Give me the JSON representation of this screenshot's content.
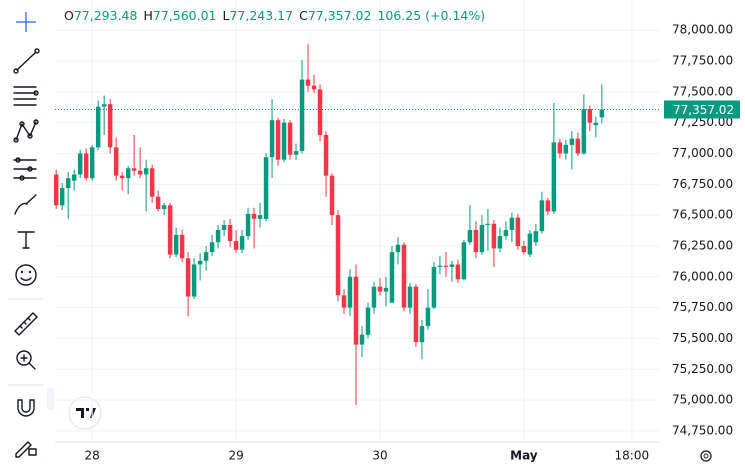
{
  "chart_data": {
    "type": "candlestick",
    "header": {
      "items": [
        {
          "label": "O",
          "value": "77,293.48"
        },
        {
          "label": "H",
          "value": "77,560.01"
        },
        {
          "label": "L",
          "value": "77,243.17"
        },
        {
          "label": "C",
          "value": "77,357.02"
        }
      ],
      "change": "106.25 (+0.14%)"
    },
    "x": [
      -6,
      -5,
      -4,
      -3,
      -2,
      -1,
      0,
      1,
      2,
      3,
      4,
      5,
      6,
      7,
      8,
      9,
      10,
      11,
      12,
      13,
      14,
      15,
      16,
      17,
      18,
      19,
      20,
      21,
      22,
      23,
      24,
      25,
      26,
      27,
      28,
      29,
      30,
      31,
      32,
      33,
      34,
      35,
      36,
      37,
      38,
      39,
      40,
      41,
      42,
      43,
      44,
      45,
      46,
      47,
      48,
      49,
      50,
      51,
      52,
      53,
      54,
      55,
      56,
      57,
      58,
      59,
      60,
      61,
      62,
      63,
      64,
      65,
      66,
      67,
      68,
      69,
      70,
      71,
      72,
      73,
      74,
      75,
      76,
      77,
      78,
      79,
      80,
      81,
      82,
      83,
      84,
      85
    ],
    "open": [
      76830,
      76580,
      76720,
      76780,
      76830,
      77000,
      76800,
      77050,
      77380,
      77400,
      77050,
      76820,
      76800,
      76880,
      76860,
      76830,
      76880,
      76650,
      76550,
      76580,
      76180,
      76340,
      76150,
      75840,
      76100,
      76130,
      76200,
      76280,
      76380,
      76420,
      76290,
      76220,
      76330,
      76510,
      76470,
      76470,
      76970,
      77270,
      76950,
      77250,
      76990,
      77020,
      77600,
      77550,
      77520,
      77150,
      76820,
      76500,
      75850,
      75750,
      76000,
      75450,
      75530,
      75750,
      75920,
      75880,
      75790,
      76200,
      76260,
      75750,
      75920,
      75470,
      75600,
      75750,
      76080,
      76090,
      76080,
      76100,
      75980,
      76280,
      76380,
      76200,
      76420,
      76430,
      76230,
      76330,
      76380,
      76480,
      76250,
      76180,
      76280,
      76370,
      76620,
      76530,
      77090,
      77000,
      77070,
      77120,
      77000,
      77360,
      77230,
      77293.48
    ],
    "close": [
      76580,
      76720,
      76800,
      76830,
      77000,
      76800,
      77050,
      77380,
      77400,
      77050,
      76820,
      76800,
      76880,
      76860,
      76830,
      76880,
      76650,
      76550,
      76580,
      76180,
      76340,
      76150,
      75840,
      76100,
      76130,
      76200,
      76280,
      76380,
      76420,
      76290,
      76220,
      76330,
      76510,
      76470,
      76500,
      76970,
      77270,
      76950,
      77250,
      76990,
      77020,
      77600,
      77550,
      77520,
      77150,
      76820,
      76500,
      75850,
      75750,
      76000,
      75450,
      75530,
      75750,
      75920,
      75880,
      75910,
      76200,
      76260,
      75750,
      75920,
      75470,
      75600,
      75750,
      76080,
      76090,
      76080,
      76100,
      75980,
      76280,
      76380,
      76200,
      76420,
      76430,
      76230,
      76330,
      76380,
      76480,
      76250,
      76200,
      76350,
      76370,
      76620,
      76530,
      77090,
      77000,
      77070,
      77120,
      77000,
      77360,
      77250,
      77250,
      77357.02
    ],
    "high": [
      76870,
      76760,
      76850,
      76870,
      77030,
      77040,
      77070,
      77430,
      77470,
      77440,
      77130,
      76850,
      76900,
      77150,
      77050,
      76950,
      76910,
      76700,
      76600,
      76600,
      76400,
      76380,
      76200,
      76150,
      76190,
      76250,
      76340,
      76420,
      76460,
      76470,
      76380,
      76380,
      76560,
      76560,
      76600,
      77000,
      77440,
      77290,
      77280,
      77270,
      77080,
      77760,
      77890,
      77640,
      77560,
      77180,
      76840,
      76540,
      75900,
      76060,
      76100,
      75600,
      75790,
      75960,
      75990,
      76000,
      76250,
      76320,
      76280,
      75950,
      75940,
      75650,
      75900,
      76120,
      76170,
      76200,
      76130,
      76140,
      76300,
      76580,
      76450,
      76500,
      76550,
      76460,
      76400,
      76450,
      76520,
      76510,
      76290,
      76380,
      76430,
      76690,
      76640,
      77410,
      77120,
      77110,
      77180,
      77170,
      77480,
      77390,
      77300,
      77560.01
    ],
    "low": [
      76550,
      76540,
      76470,
      76700,
      76800,
      76780,
      76780,
      77030,
      77150,
      77000,
      76780,
      76700,
      76670,
      76820,
      76800,
      76530,
      76600,
      76530,
      76500,
      76150,
      76160,
      76120,
      75680,
      75820,
      75970,
      76050,
      76170,
      76230,
      76330,
      76240,
      76190,
      76190,
      76300,
      76230,
      76400,
      76450,
      76800,
      76900,
      76930,
      76950,
      76950,
      77000,
      77500,
      77490,
      77100,
      76650,
      76420,
      75800,
      75700,
      75680,
      74960,
      75350,
      75500,
      75700,
      75850,
      75760,
      75790,
      76100,
      75720,
      75700,
      75430,
      75330,
      75570,
      75740,
      76020,
      76000,
      75960,
      75950,
      75970,
      76260,
      76150,
      76180,
      76210,
      76080,
      76200,
      76300,
      76280,
      76220,
      76180,
      76160,
      76250,
      76350,
      76500,
      76510,
      76960,
      76950,
      76870,
      76980,
      76990,
      77180,
      77130,
      77243.17
    ],
    "colors": {
      "up": "#089981",
      "down": "#f23645"
    },
    "xlim": [
      -6.2,
      94.7
    ],
    "xticks": [
      {
        "value": 0,
        "label": "28"
      },
      {
        "value": 24,
        "label": "29"
      },
      {
        "value": 48,
        "label": "30"
      },
      {
        "value": 72,
        "label": "May"
      },
      {
        "value": 90,
        "label": "18:00"
      }
    ],
    "ylim": [
      74660,
      78245
    ],
    "yticks": [
      {
        "value": 74750,
        "label": "74,750.00"
      },
      {
        "value": 75000,
        "label": "75,000.00"
      },
      {
        "value": 75250,
        "label": "75,250.00"
      },
      {
        "value": 75500,
        "label": "75,500.00"
      },
      {
        "value": 75750,
        "label": "75,750.00"
      },
      {
        "value": 76000,
        "label": "76,000.00"
      },
      {
        "value": 76250,
        "label": "76,250.00"
      },
      {
        "value": 76500,
        "label": "76,500.00"
      },
      {
        "value": 76750,
        "label": "76,750.00"
      },
      {
        "value": 77000,
        "label": "77,000.00"
      },
      {
        "value": 77250,
        "label": "77,250.00"
      },
      {
        "value": 77500,
        "label": "77,500.00"
      },
      {
        "value": 77750,
        "label": "77,750.00"
      },
      {
        "value": 78000,
        "label": "78,000.00"
      }
    ],
    "grid": true,
    "last_price": {
      "value": 77357.02,
      "label": "77,357.02"
    }
  }
}
